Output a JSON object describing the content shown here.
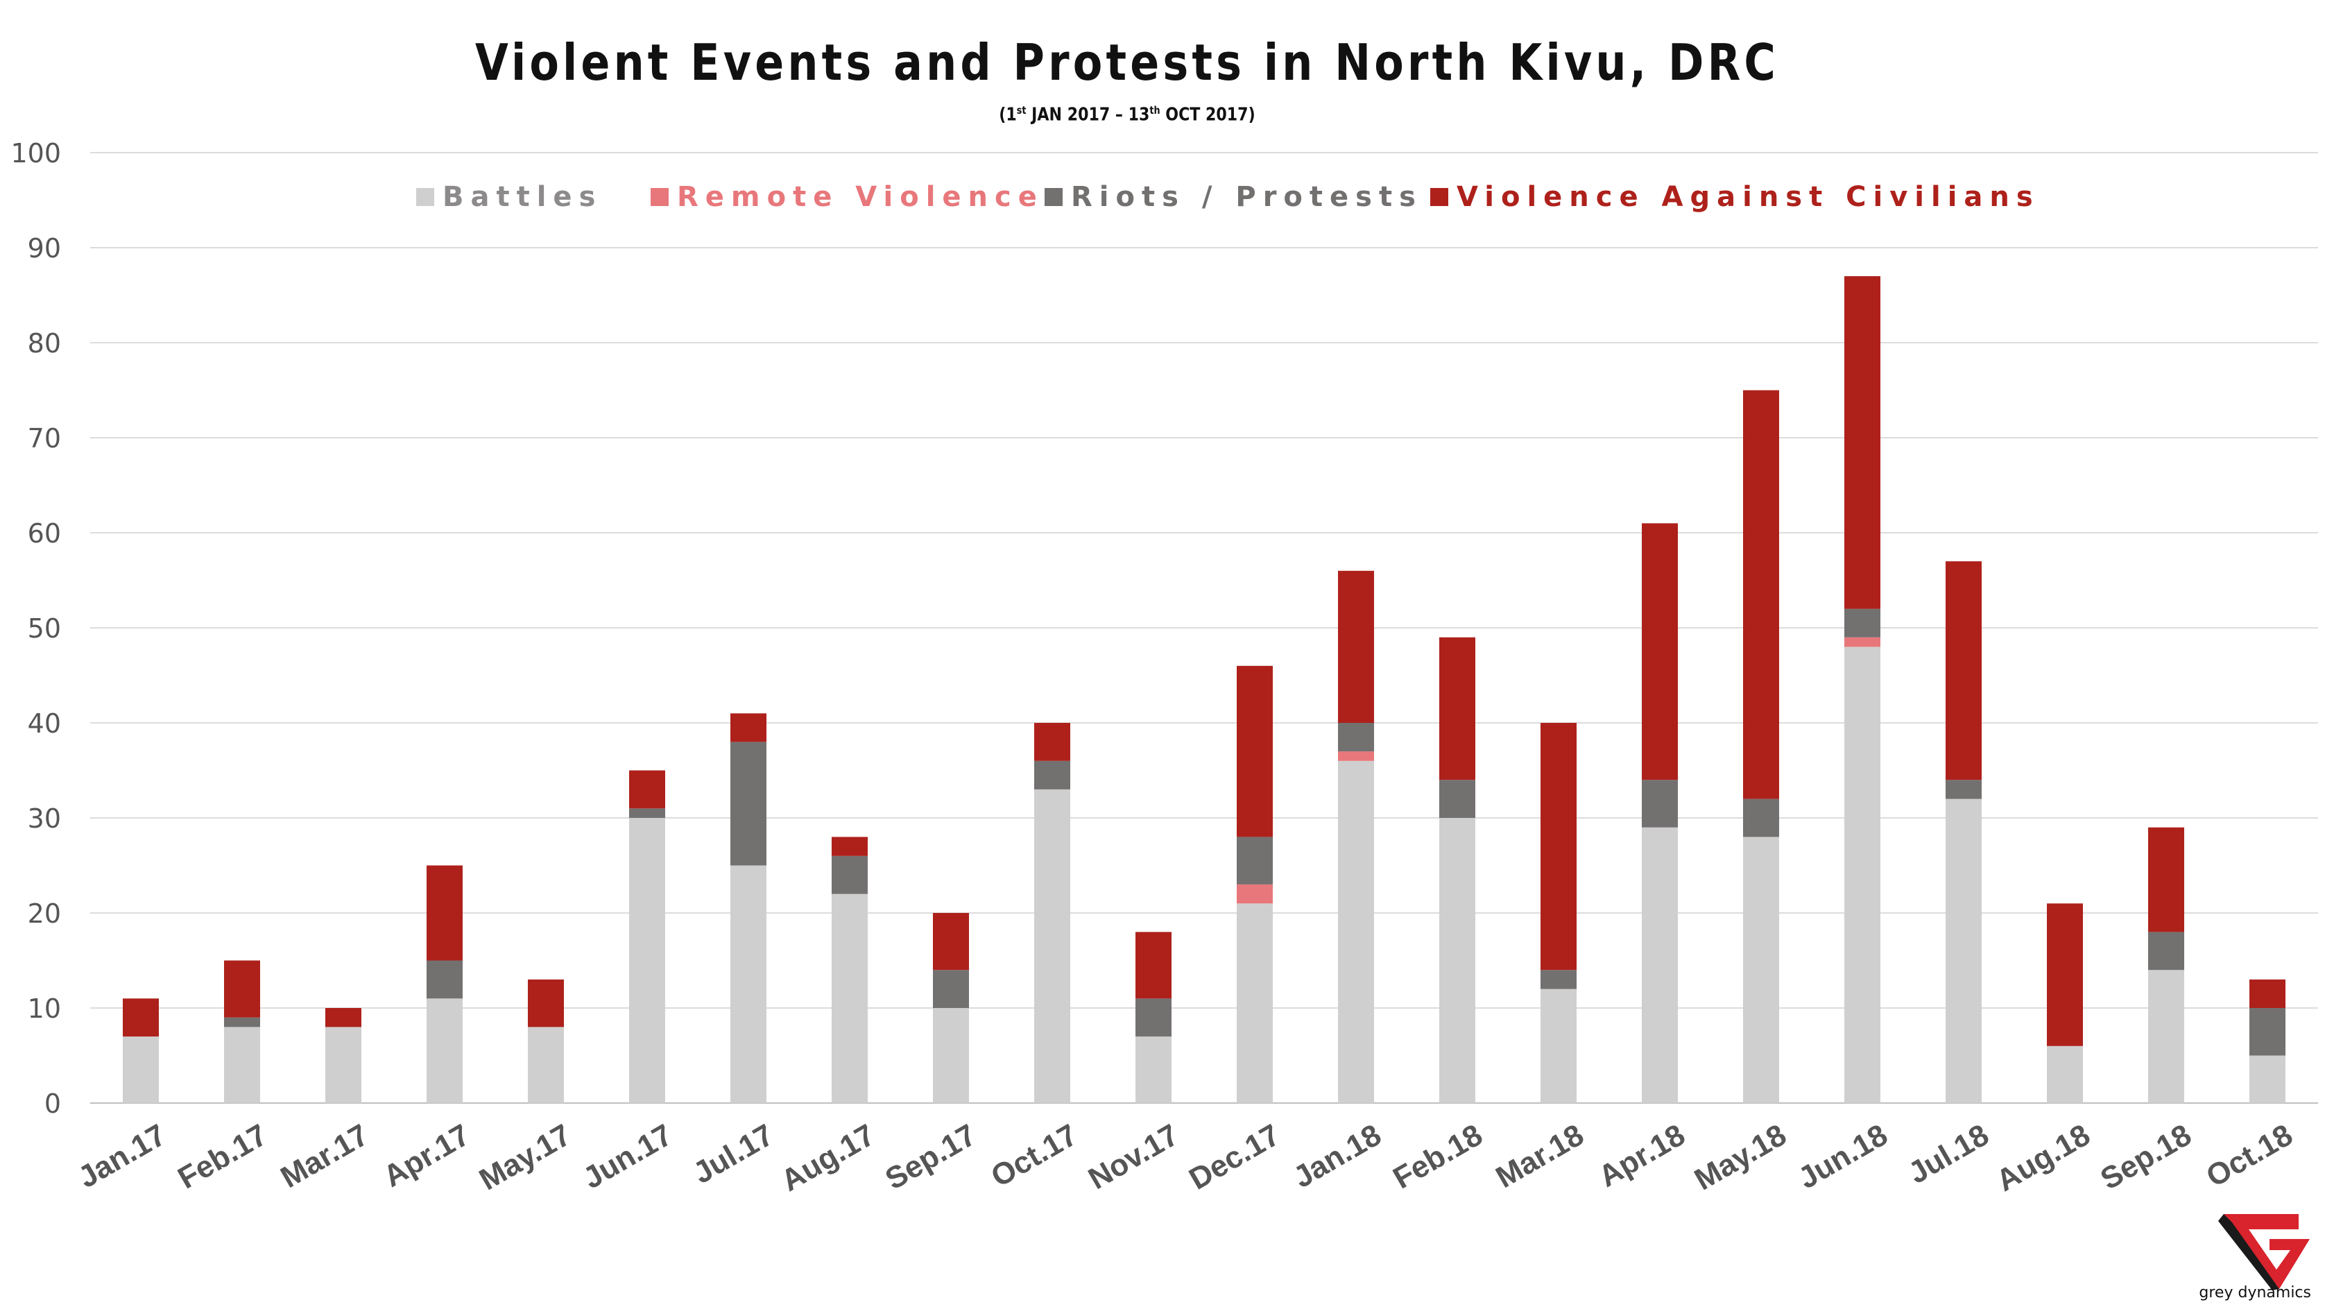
{
  "chart_data": {
    "type": "bar",
    "stacked": true,
    "title": "Violent Events and Protests in North Kivu, DRC",
    "subtitle": "(1st JAN 2017 – 13th OCT 2017)",
    "categories": [
      "Jan.17",
      "Feb.17",
      "Mar.17",
      "Apr.17",
      "May.17",
      "Jun.17",
      "Jul.17",
      "Aug.17",
      "Sep.17",
      "Oct.17",
      "Nov.17",
      "Dec.17",
      "Jan.18",
      "Feb.18",
      "Mar.18",
      "Apr.18",
      "May.18",
      "Jun.18",
      "Jul.18",
      "Aug.18",
      "Sep.18",
      "Oct.18"
    ],
    "series": [
      {
        "name": "Battles",
        "color": "#d0cfcf",
        "values": [
          7,
          8,
          8,
          11,
          8,
          30,
          25,
          22,
          10,
          33,
          7,
          21,
          36,
          30,
          12,
          29,
          28,
          48,
          32,
          6,
          14,
          5
        ]
      },
      {
        "name": "Remote Violence",
        "color": "#e8777b",
        "values": [
          0,
          0,
          0,
          0,
          0,
          0,
          0,
          0,
          0,
          0,
          0,
          2,
          1,
          0,
          0,
          0,
          0,
          1,
          0,
          0,
          0,
          0
        ]
      },
      {
        "name": "Riots / Protests",
        "color": "#737070",
        "values": [
          0,
          1,
          0,
          4,
          0,
          1,
          13,
          4,
          4,
          3,
          4,
          5,
          3,
          4,
          2,
          5,
          4,
          3,
          2,
          0,
          4,
          5
        ]
      },
      {
        "name": "Violence Against Civilians",
        "color": "#ae211b",
        "values": [
          4,
          6,
          2,
          10,
          5,
          4,
          3,
          2,
          6,
          4,
          7,
          18,
          16,
          15,
          26,
          27,
          43,
          35,
          23,
          15,
          11,
          3
        ]
      }
    ],
    "ylim": [
      0,
      100
    ],
    "yticks": [
      "0",
      "10",
      "20",
      "30",
      "40",
      "50",
      "60",
      "70",
      "80",
      "90",
      "100"
    ],
    "xlabel": "",
    "ylabel": "",
    "grid": true,
    "legend_position": "top"
  },
  "branding": {
    "logo_text": "grey dynamics",
    "logo_colors": {
      "red": "#d9232d",
      "dark": "#1a1a1a"
    }
  }
}
